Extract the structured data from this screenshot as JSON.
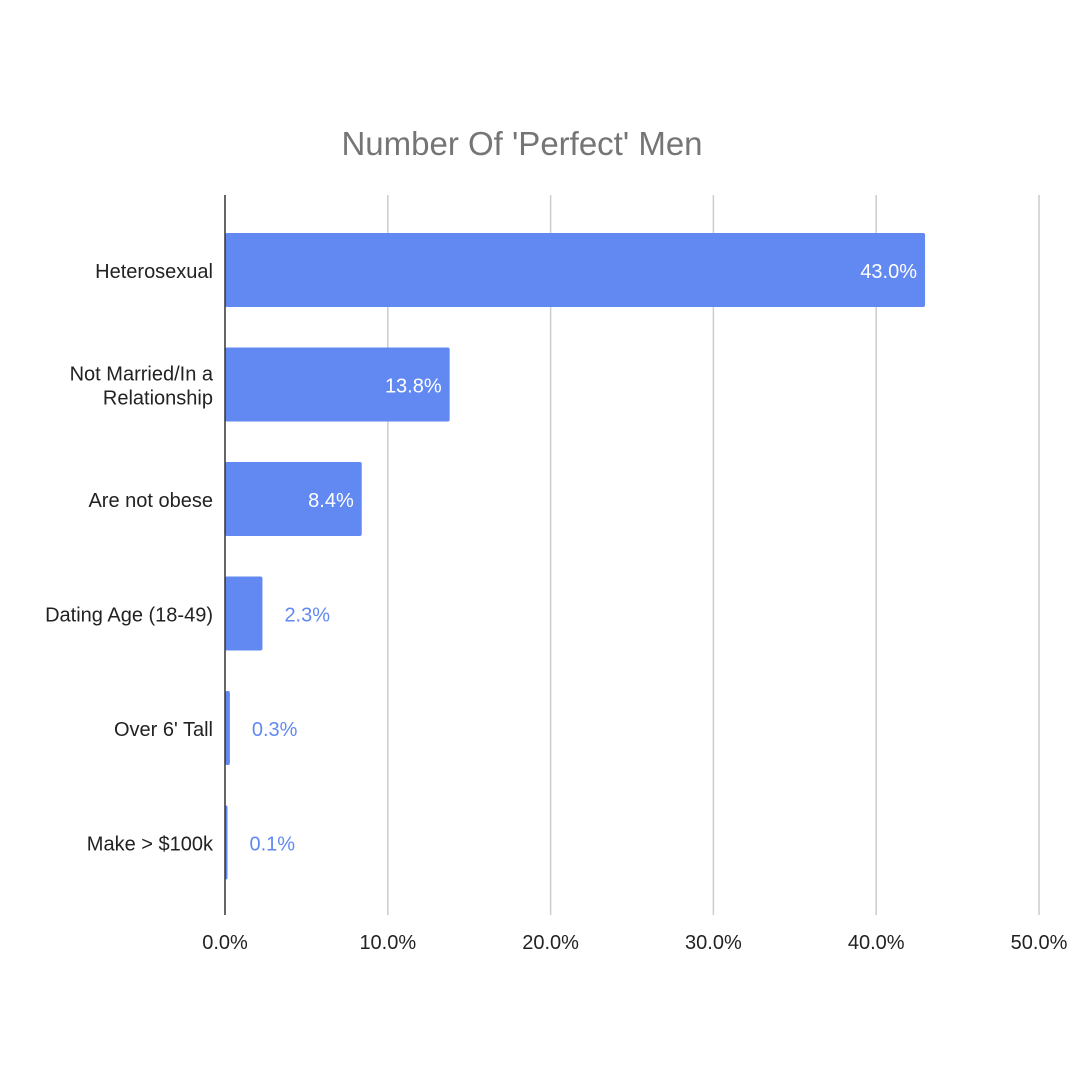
{
  "chart_data": {
    "type": "bar",
    "orientation": "horizontal",
    "title": "Number Of 'Perfect' Men",
    "xlabel": "",
    "ylabel": "",
    "categories": [
      [
        "Heterosexual"
      ],
      [
        "Not Married/In a",
        "Relationship"
      ],
      [
        "Are not obese"
      ],
      [
        "Dating Age (18-49)"
      ],
      [
        "Over 6' Tall"
      ],
      [
        "Make > $100k"
      ]
    ],
    "values": [
      43.0,
      13.8,
      8.4,
      2.3,
      0.3,
      0.1
    ],
    "value_labels": [
      "43.0%",
      "13.8%",
      "8.4%",
      "2.3%",
      "0.3%",
      "0.1%"
    ],
    "xlim": [
      0,
      50
    ],
    "ticks": [
      0,
      10,
      20,
      30,
      40,
      50
    ],
    "tick_labels": [
      "0.0%",
      "10.0%",
      "20.0%",
      "30.0%",
      "40.0%",
      "50.0%"
    ],
    "grid": true,
    "legend": "none",
    "colors": {
      "bar": "#6289f1",
      "label_inside": "#ffffff",
      "label_outside": "#6289f1",
      "title": "#757575",
      "text": "#222222",
      "grid": "#cccccc",
      "axis": "#333333"
    }
  }
}
